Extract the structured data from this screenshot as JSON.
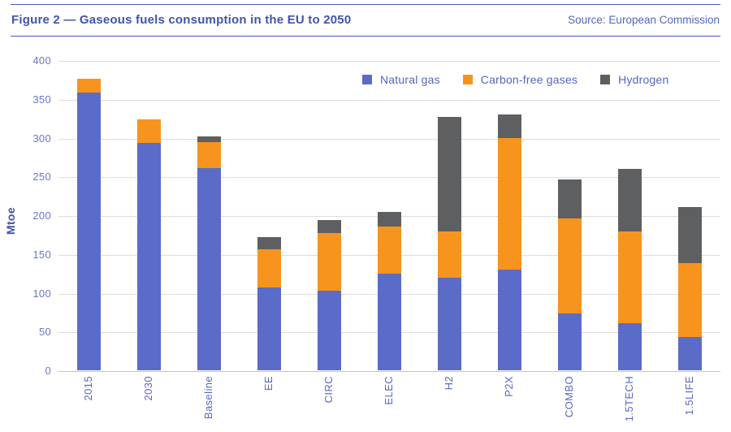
{
  "header": {
    "title": "Figure 2 — Gaseous fuels consumption in the EU to 2050",
    "source": "Source: European Commission"
  },
  "chart_data": {
    "type": "bar",
    "stacked": true,
    "ylabel": "Mtoe",
    "ylim": [
      0,
      400
    ],
    "ytick_step": 50,
    "yticks": [
      0,
      50,
      100,
      150,
      200,
      250,
      300,
      350,
      400
    ],
    "grid": true,
    "legend_position": "top-right-inside",
    "categories": [
      "2015",
      "2030",
      "Baseline",
      "EE",
      "CIRC",
      "ELEC",
      "H2",
      "P2X",
      "COMBO",
      "1.5TECH",
      "1.5LIFE"
    ],
    "series": [
      {
        "name": "Natural gas",
        "color": "#5a6bc8",
        "values": [
          358,
          293,
          261,
          107,
          103,
          125,
          119,
          130,
          73,
          61,
          43
        ]
      },
      {
        "name": "Carbon-free gases",
        "color": "#f7941d",
        "values": [
          18,
          31,
          33,
          49,
          74,
          60,
          60,
          170,
          123,
          118,
          95
        ]
      },
      {
        "name": "Hydrogen",
        "color": "#5e5f61",
        "values": [
          0,
          0,
          8,
          16,
          17,
          19,
          148,
          30,
          50,
          81,
          73
        ]
      }
    ],
    "totals": [
      376,
      324,
      302,
      172,
      194,
      204,
      327,
      330,
      246,
      260,
      211
    ]
  },
  "colors": {
    "title_blue": "#4353ae",
    "tick_blue": "#6977c9",
    "label_blue": "#5a68c0",
    "gridline": "#dddddd",
    "header_rule": "#4a59b5"
  }
}
